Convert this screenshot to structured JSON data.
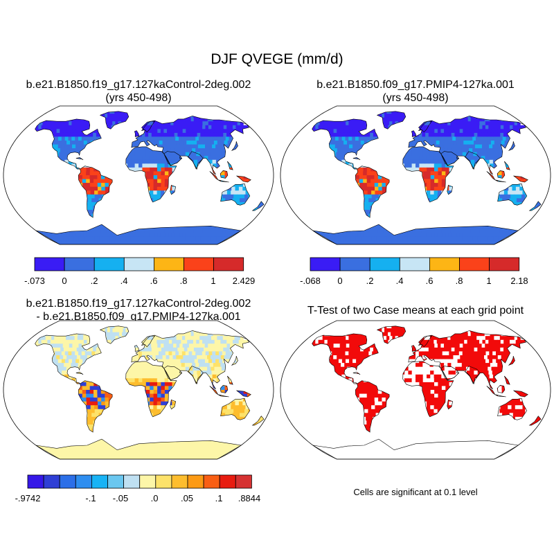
{
  "title": "DJF QVEGE (mm/d)",
  "colors": {
    "ocean": "#ffffff",
    "outline": "#000000",
    "c0": "#3a1cf5",
    "c1": "#3a6fe0",
    "c2": "#15b0f0",
    "c3": "#c7e5f5",
    "c4": "#fdb515",
    "c5": "#fa421a",
    "c6": "#d62a2a",
    "d0": "#3618e8",
    "d1": "#2f3fd6",
    "d2": "#2c6fe8",
    "d3": "#2e8ef0",
    "d4": "#18b3f5",
    "d5": "#6ac7f0",
    "d6": "#bfe0f2",
    "d7": "#fdf6a8",
    "d8": "#fde26a",
    "d9": "#fdbd2e",
    "d10": "#fc9a14",
    "d11": "#f95f14",
    "d12": "#e81c10",
    "d13": "#d63232",
    "sig": "#f20a0a"
  },
  "panels": [
    {
      "id": "control",
      "title_lines": [
        "b.e21.B1850.f19_g17.127kaControl-2deg.002",
        "(yrs 450-498)"
      ],
      "colorbar": {
        "labels": [
          "-.073",
          "0",
          ".2",
          ".4",
          ".6",
          ".8",
          "1",
          "2.429"
        ],
        "colors": [
          "#3a1cf5",
          "#3a6fe0",
          "#15b0f0",
          "#c7e5f5",
          "#fdb515",
          "#fa421a",
          "#d62a2a"
        ]
      }
    },
    {
      "id": "pmip4",
      "title_lines": [
        "b.e21.B1850.f09_g17.PMIP4-127ka.001",
        "(yrs 450-498)"
      ],
      "colorbar": {
        "labels": [
          "-.068",
          "0",
          ".2",
          ".4",
          ".6",
          ".8",
          "1",
          "2.18"
        ],
        "colors": [
          "#3a1cf5",
          "#3a6fe0",
          "#15b0f0",
          "#c7e5f5",
          "#fdb515",
          "#fa421a",
          "#d62a2a"
        ]
      }
    },
    {
      "id": "difference",
      "title_lines": [
        "b.e21.B1850.f19_g17.127kaControl-2deg.002",
        "- b.e21.B1850.f09_g17.PMIP4-127ka.001"
      ],
      "colorbar": {
        "labels": [
          "-.9742",
          "-.1",
          "-.05",
          ".0",
          ".05",
          ".1",
          ".8844"
        ],
        "colors": [
          "#3618e8",
          "#2f3fd6",
          "#2c6fe8",
          "#2e8ef0",
          "#18b3f5",
          "#6ac7f0",
          "#bfe0f2",
          "#fdf6a8",
          "#fde26a",
          "#fdbd2e",
          "#fc9a14",
          "#f95f14",
          "#e81c10",
          "#d63232"
        ]
      }
    },
    {
      "id": "ttest",
      "title_lines": [
        "T-Test of two Case means at each grid point"
      ],
      "note": "Cells are significant at 0.1 level"
    }
  ]
}
